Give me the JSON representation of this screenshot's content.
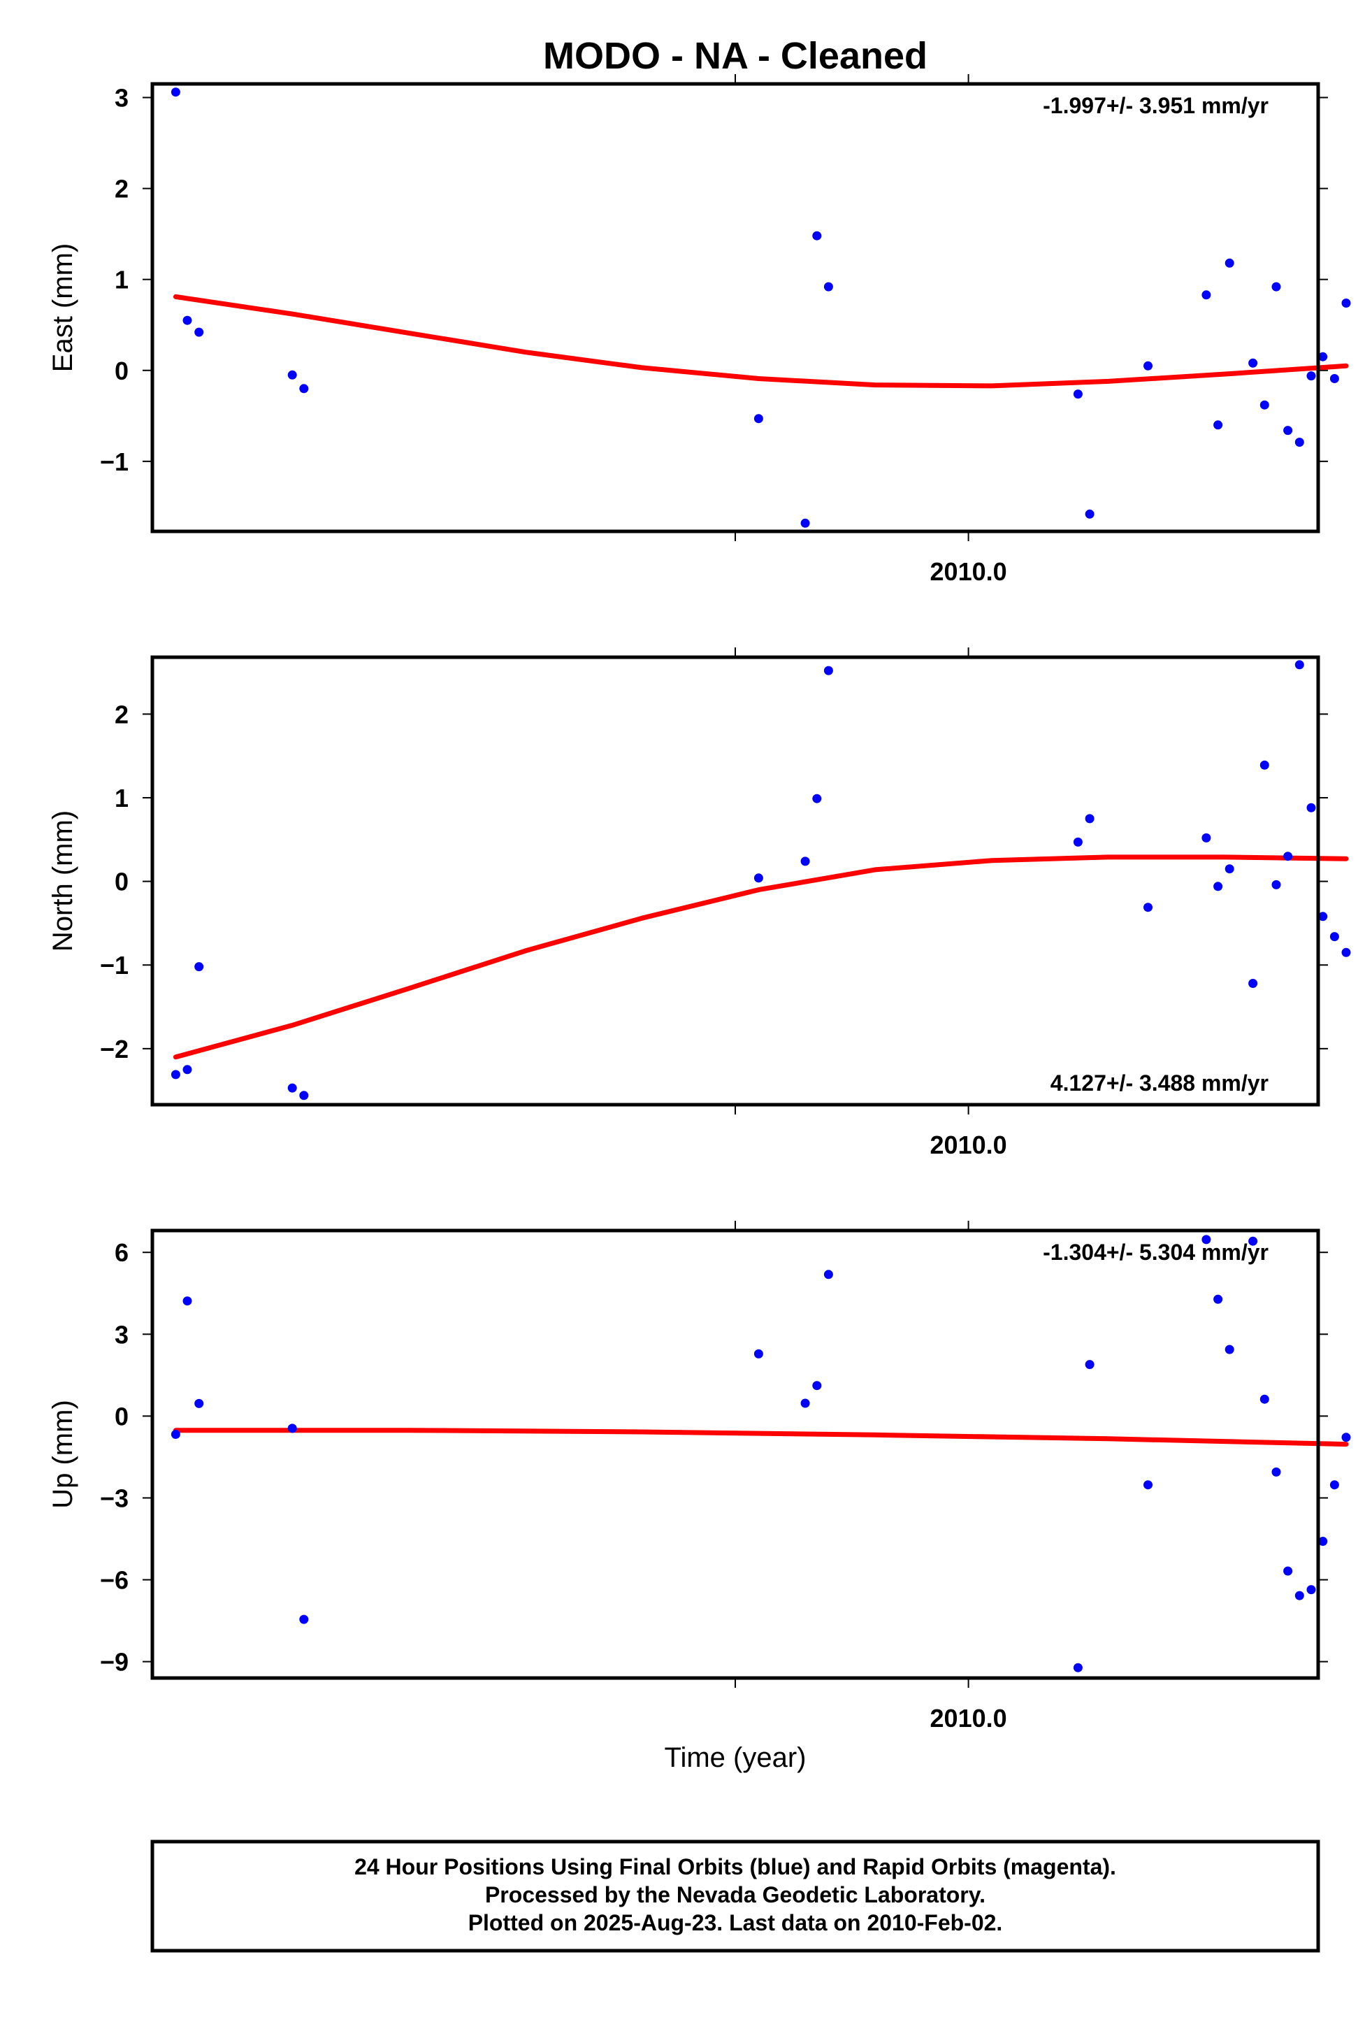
{
  "title": "MODO  - NA - Cleaned",
  "xlabel": "Time (year)",
  "footer": [
    "24 Hour Positions Using Final Orbits (blue) and Rapid Orbits (magenta).",
    "Processed by the Nevada Geodetic Laboratory.",
    "Plotted on 2025-Aug-23. Last data on 2010-Feb-02."
  ],
  "colors": {
    "points": "#0000ff",
    "fit": "#ff0000",
    "axes": "#000000"
  },
  "chart_data": [
    {
      "type": "scatter",
      "name": "east",
      "ylabel": "East (mm)",
      "rate_text": "-1.997+/- 3.951 mm/yr",
      "xlim": [
        2009.65,
        2010.15
      ],
      "ylim": [
        -1.77,
        3.15
      ],
      "yticks": [
        3,
        2,
        1,
        0,
        -1
      ],
      "ytick_labels": [
        "3",
        "2",
        "1",
        "0",
        "−1"
      ],
      "xtick_labels": [
        {
          "x": 2010.0,
          "label": "2010.0"
        }
      ],
      "x": [
        2009.66,
        2009.665,
        2009.67,
        2009.71,
        2009.715,
        2009.91,
        2009.93,
        2009.935,
        2009.94,
        2010.047,
        2010.052,
        2010.077,
        2010.102,
        2010.107,
        2010.112,
        2010.122,
        2010.127,
        2010.132,
        2010.137,
        2010.142,
        2010.147,
        2010.152,
        2010.157,
        2010.162
      ],
      "y": [
        3.06,
        0.55,
        0.42,
        -0.05,
        -0.2,
        -0.53,
        -1.68,
        1.48,
        0.92,
        -0.26,
        -1.58,
        0.05,
        0.83,
        -0.6,
        1.18,
        0.08,
        -0.38,
        0.92,
        -0.66,
        -0.79,
        -0.06,
        0.15,
        -0.09,
        0.74
      ],
      "fit": {
        "x": [
          2009.66,
          2009.71,
          2009.76,
          2009.81,
          2009.86,
          2009.91,
          2009.96,
          2010.01,
          2010.06,
          2010.11,
          2010.162
        ],
        "y": [
          0.81,
          0.62,
          0.41,
          0.2,
          0.03,
          -0.09,
          -0.16,
          -0.17,
          -0.12,
          -0.04,
          0.05
        ]
      }
    },
    {
      "type": "scatter",
      "name": "north",
      "ylabel": "North (mm)",
      "rate_text": "4.127+/- 3.488 mm/yr",
      "xlim": [
        2009.65,
        2010.15
      ],
      "ylim": [
        -2.67,
        2.68
      ],
      "yticks": [
        2,
        1,
        0,
        -1,
        -2
      ],
      "ytick_labels": [
        "2",
        "1",
        "0",
        "−1",
        "−2"
      ],
      "xtick_labels": [
        {
          "x": 2010.0,
          "label": "2010.0"
        }
      ],
      "x": [
        2009.66,
        2009.665,
        2009.67,
        2009.71,
        2009.715,
        2009.91,
        2009.93,
        2009.935,
        2009.94,
        2010.047,
        2010.052,
        2010.077,
        2010.102,
        2010.107,
        2010.112,
        2010.122,
        2010.127,
        2010.132,
        2010.137,
        2010.142,
        2010.147,
        2010.152,
        2010.157,
        2010.162
      ],
      "y": [
        -2.31,
        -2.25,
        -1.02,
        -2.47,
        -2.56,
        0.04,
        0.24,
        0.99,
        2.52,
        0.47,
        0.75,
        -0.31,
        0.52,
        -0.06,
        0.15,
        -1.22,
        1.39,
        -0.04,
        0.3,
        2.59,
        0.88,
        -0.42,
        -0.66,
        -0.85
      ],
      "fit": {
        "x": [
          2009.66,
          2009.71,
          2009.76,
          2009.81,
          2009.86,
          2009.91,
          2009.96,
          2010.01,
          2010.06,
          2010.11,
          2010.162
        ],
        "y": [
          -2.1,
          -1.72,
          -1.28,
          -0.83,
          -0.44,
          -0.1,
          0.14,
          0.25,
          0.29,
          0.29,
          0.27
        ]
      }
    },
    {
      "type": "scatter",
      "name": "up",
      "ylabel": "Up (mm)",
      "rate_text": "-1.304+/- 5.304 mm/yr",
      "xlim": [
        2009.65,
        2010.15
      ],
      "ylim": [
        -9.6,
        6.8
      ],
      "yticks": [
        6,
        3,
        0,
        -3,
        -6,
        -9
      ],
      "ytick_labels": [
        "6",
        "3",
        "0",
        "−3",
        "−6",
        "−9"
      ],
      "xtick_labels": [
        {
          "x": 2010.0,
          "label": "2010.0"
        }
      ],
      "x": [
        2009.66,
        2009.665,
        2009.67,
        2009.71,
        2009.715,
        2009.91,
        2009.93,
        2009.935,
        2009.94,
        2010.047,
        2010.052,
        2010.077,
        2010.102,
        2010.107,
        2010.112,
        2010.122,
        2010.127,
        2010.132,
        2010.137,
        2010.142,
        2010.147,
        2010.152,
        2010.157,
        2010.162
      ],
      "y": [
        -0.67,
        4.22,
        0.46,
        -0.45,
        -7.45,
        2.28,
        0.47,
        1.12,
        5.19,
        -9.22,
        1.89,
        -2.52,
        6.47,
        4.28,
        2.44,
        6.41,
        0.62,
        -2.05,
        -5.68,
        -6.58,
        -6.36,
        -4.59,
        -2.52,
        -0.78
      ],
      "fit": {
        "x": [
          2009.66,
          2009.76,
          2009.86,
          2009.96,
          2010.06,
          2010.162
        ],
        "y": [
          -0.52,
          -0.52,
          -0.58,
          -0.69,
          -0.83,
          -1.03
        ]
      }
    }
  ]
}
